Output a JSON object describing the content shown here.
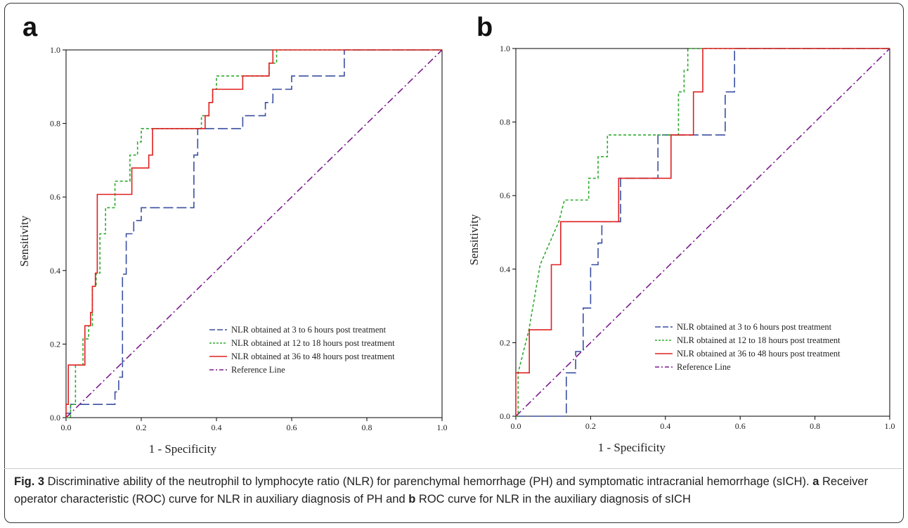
{
  "figure": {
    "panels": [
      {
        "letter": "a"
      },
      {
        "letter": "b"
      }
    ],
    "caption": {
      "label": "Fig. 3",
      "text1": " Discriminative ability of the neutrophil to lymphocyte ratio (NLR) for parenchymal hemorrhage (PH) and symptomatic intracranial hemorrhage (sICH). ",
      "bold_a": "a",
      "text2": " Receiver operator characteristic (ROC) curve for NLR in auxiliary diagnosis of PH and ",
      "bold_b": "b",
      "text3": " ROC curve for NLR in the auxiliary diagnosis of sICH"
    }
  },
  "colors": {
    "blue": "#3a4fa0",
    "green": "#2eaa2e",
    "red": "#e02020",
    "purple": "#7a1a8c",
    "axis": "#000000"
  },
  "chart_data": [
    {
      "type": "line",
      "panel": "a",
      "xlabel": "1 - Specificity",
      "ylabel": "Sensitivity",
      "xlim": [
        0,
        1
      ],
      "ylim": [
        0,
        1
      ],
      "xticks": [
        "0.0",
        "0.2",
        "0.4",
        "0.6",
        "0.8",
        "1.0"
      ],
      "yticks": [
        "0.0",
        "0.2",
        "0.4",
        "0.6",
        "0.8",
        "1.0"
      ],
      "grid": false,
      "legend_position": "bottom-right",
      "series": [
        {
          "name": "NLR obtained at 3 to 6 hours post treatment",
          "color": "blue",
          "dash": "long-dash",
          "x": [
            0,
            0,
            0.012,
            0.012,
            0.13,
            0.13,
            0.14,
            0.14,
            0.15,
            0.15,
            0.16,
            0.16,
            0.18,
            0.18,
            0.2,
            0.2,
            0.34,
            0.34,
            0.35,
            0.35,
            0.47,
            0.47,
            0.53,
            0.53,
            0.55,
            0.55,
            0.57,
            0.57,
            0.6,
            0.6,
            0.74,
            0.74,
            1.0
          ],
          "y": [
            0,
            0.012,
            0.012,
            0.036,
            0.036,
            0.07,
            0.07,
            0.11,
            0.11,
            0.39,
            0.39,
            0.5,
            0.5,
            0.536,
            0.536,
            0.571,
            0.571,
            0.714,
            0.714,
            0.786,
            0.786,
            0.821,
            0.821,
            0.857,
            0.857,
            0.893,
            0.893,
            0.893,
            0.893,
            0.929,
            0.929,
            1.0,
            1.0
          ]
        },
        {
          "name": "NLR obtained at 12 to 18 hours post treatment",
          "color": "green",
          "dash": "short-dash",
          "x": [
            0,
            0.012,
            0.012,
            0.025,
            0.025,
            0.045,
            0.045,
            0.06,
            0.06,
            0.07,
            0.07,
            0.08,
            0.08,
            0.09,
            0.09,
            0.105,
            0.105,
            0.13,
            0.13,
            0.17,
            0.17,
            0.19,
            0.19,
            0.2,
            0.2,
            0.23,
            0.23,
            0.36,
            0.36,
            0.38,
            0.38,
            0.39,
            0.39,
            0.4,
            0.4,
            0.48,
            0.48,
            0.54,
            0.54,
            0.56,
            0.56,
            1.0
          ],
          "y": [
            0,
            0,
            0.036,
            0.036,
            0.143,
            0.143,
            0.214,
            0.214,
            0.25,
            0.25,
            0.357,
            0.357,
            0.393,
            0.393,
            0.5,
            0.5,
            0.571,
            0.571,
            0.643,
            0.643,
            0.714,
            0.714,
            0.75,
            0.75,
            0.786,
            0.786,
            0.786,
            0.786,
            0.821,
            0.821,
            0.857,
            0.857,
            0.893,
            0.893,
            0.929,
            0.929,
            0.929,
            0.929,
            0.964,
            0.964,
            1.0,
            1.0
          ]
        },
        {
          "name": "NLR obtained at 36 to 48 hours post treatment",
          "color": "red",
          "dash": "solid",
          "x": [
            0,
            0,
            0.006,
            0.006,
            0.05,
            0.05,
            0.065,
            0.065,
            0.07,
            0.07,
            0.078,
            0.078,
            0.083,
            0.083,
            0.175,
            0.175,
            0.22,
            0.22,
            0.23,
            0.23,
            0.37,
            0.37,
            0.38,
            0.38,
            0.39,
            0.39,
            0.4,
            0.4,
            0.47,
            0.47,
            0.54,
            0.54,
            0.55,
            0.55,
            0.58,
            0.58,
            1.0
          ],
          "y": [
            0,
            0.036,
            0.036,
            0.143,
            0.143,
            0.25,
            0.25,
            0.286,
            0.286,
            0.357,
            0.357,
            0.393,
            0.393,
            0.607,
            0.607,
            0.679,
            0.679,
            0.714,
            0.714,
            0.786,
            0.786,
            0.821,
            0.821,
            0.857,
            0.857,
            0.893,
            0.893,
            0.893,
            0.893,
            0.929,
            0.929,
            0.964,
            0.964,
            1.0,
            1.0,
            1.0,
            1.0
          ]
        },
        {
          "name": "Reference Line",
          "color": "purple",
          "dash": "dash-dot",
          "x": [
            0,
            1
          ],
          "y": [
            0,
            1
          ]
        }
      ]
    },
    {
      "type": "line",
      "panel": "b",
      "xlabel": "1 - Specificity",
      "ylabel": "Sensitivity",
      "xlim": [
        0,
        1
      ],
      "ylim": [
        0,
        1
      ],
      "xticks": [
        "0.0",
        "0.2",
        "0.4",
        "0.6",
        "0.8",
        "1.0"
      ],
      "yticks": [
        "0.0",
        "0.2",
        "0.4",
        "0.6",
        "0.8",
        "1.0"
      ],
      "grid": false,
      "legend_position": "bottom-right",
      "series": [
        {
          "name": "NLR obtained at 3 to 6 hours post treatment",
          "color": "blue",
          "dash": "long-dash",
          "x": [
            0,
            0.135,
            0.135,
            0.16,
            0.16,
            0.18,
            0.18,
            0.2,
            0.2,
            0.22,
            0.22,
            0.23,
            0.23,
            0.28,
            0.28,
            0.38,
            0.38,
            0.56,
            0.56,
            0.585,
            0.585,
            1.0
          ],
          "y": [
            0,
            0,
            0.118,
            0.118,
            0.176,
            0.176,
            0.294,
            0.294,
            0.412,
            0.412,
            0.471,
            0.471,
            0.529,
            0.529,
            0.647,
            0.647,
            0.765,
            0.765,
            0.882,
            0.882,
            1.0,
            1.0
          ]
        },
        {
          "name": "NLR obtained at 12 to 18 hours post treatment",
          "color": "green",
          "dash": "short-dash",
          "x": [
            0,
            0.006,
            0.006,
            0.035,
            0.035,
            0.065,
            0.065,
            0.09,
            0.09,
            0.115,
            0.115,
            0.13,
            0.13,
            0.195,
            0.195,
            0.22,
            0.22,
            0.245,
            0.245,
            0.435,
            0.435,
            0.45,
            0.45,
            0.46,
            0.46,
            1.0
          ],
          "y": [
            0,
            0,
            0.118,
            0.235,
            0.235,
            0.412,
            0.412,
            0.471,
            0.471,
            0.529,
            0.529,
            0.588,
            0.588,
            0.588,
            0.647,
            0.647,
            0.706,
            0.706,
            0.765,
            0.765,
            0.882,
            0.882,
            0.941,
            0.941,
            1.0,
            1.0
          ]
        },
        {
          "name": "NLR obtained at 36 to 48 hours post treatment",
          "color": "red",
          "dash": "solid",
          "x": [
            0,
            0,
            0.036,
            0.036,
            0.07,
            0.07,
            0.095,
            0.095,
            0.12,
            0.12,
            0.275,
            0.275,
            0.415,
            0.415,
            0.475,
            0.475,
            0.49,
            0.49,
            0.5,
            0.5,
            1.0
          ],
          "y": [
            0,
            0.118,
            0.118,
            0.235,
            0.235,
            0.235,
            0.235,
            0.412,
            0.412,
            0.529,
            0.529,
            0.647,
            0.647,
            0.765,
            0.765,
            0.882,
            0.882,
            0.882,
            0.882,
            1.0,
            1.0
          ]
        },
        {
          "name": "Reference Line",
          "color": "purple",
          "dash": "dash-dot",
          "x": [
            0,
            1
          ],
          "y": [
            0,
            1
          ]
        }
      ]
    }
  ]
}
